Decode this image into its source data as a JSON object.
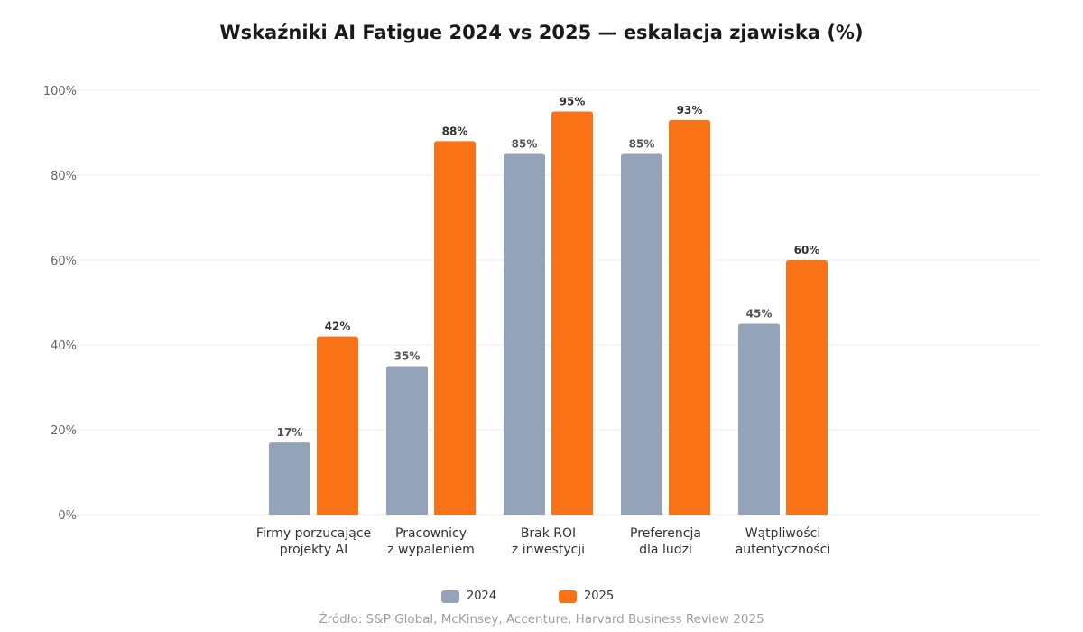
{
  "chart_data": {
    "type": "bar",
    "title": "Wskaźniki AI Fatigue 2024 vs 2025 — eskalacja zjawiska (%)",
    "categories": [
      [
        "Firmy porzucające",
        "projekty AI"
      ],
      [
        "Pracownicy",
        "z wypaleniem"
      ],
      [
        "Brak ROI",
        "z inwestycji"
      ],
      [
        "Preferencja",
        "dla ludzi"
      ],
      [
        "Wątpliwości",
        "autentyczności"
      ]
    ],
    "series": [
      {
        "name": "2024",
        "values": [
          17,
          35,
          85,
          85,
          45
        ],
        "color": "#94a3b8"
      },
      {
        "name": "2025",
        "values": [
          42,
          88,
          95,
          93,
          60
        ],
        "color": "#f97316"
      }
    ],
    "ylim": [
      0,
      100
    ],
    "yticks": [
      0,
      20,
      40,
      60,
      80,
      100
    ],
    "ytick_suffix": "%",
    "grid": true,
    "legend_position": "bottom-center",
    "source": "Źródło: S&P Global, McKinsey, Accenture, Harvard Business Review 2025"
  }
}
